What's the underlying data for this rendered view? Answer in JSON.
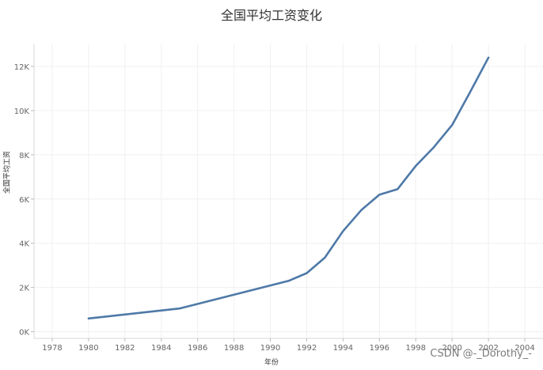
{
  "chart_data": {
    "type": "line",
    "title": "全国平均工资变化",
    "xlabel": "年份",
    "ylabel": "全国平均工资",
    "xlim": [
      1977,
      2005
    ],
    "ylim": [
      -300,
      13000
    ],
    "xticks": [
      1978,
      1980,
      1982,
      1984,
      1986,
      1988,
      1990,
      1992,
      1994,
      1996,
      1998,
      2000,
      2002,
      2004
    ],
    "yticks": [
      0,
      2000,
      4000,
      6000,
      8000,
      10000,
      12000
    ],
    "ytick_labels": [
      "0K",
      "2K",
      "4K",
      "6K",
      "8K",
      "10K",
      "12K"
    ],
    "grid": true,
    "series": [
      {
        "color": "#4e79a7",
        "x": [
          1980,
          1985,
          1991,
          1992,
          1993,
          1994,
          1995,
          1996,
          1997,
          1998,
          1999,
          2000,
          2001,
          2002
        ],
        "y": [
          600,
          1050,
          2300,
          2650,
          3350,
          4550,
          5500,
          6200,
          6450,
          7500,
          8350,
          9350,
          10850,
          12400
        ]
      }
    ]
  },
  "watermark": "CSDN @-_Dorothy_-"
}
